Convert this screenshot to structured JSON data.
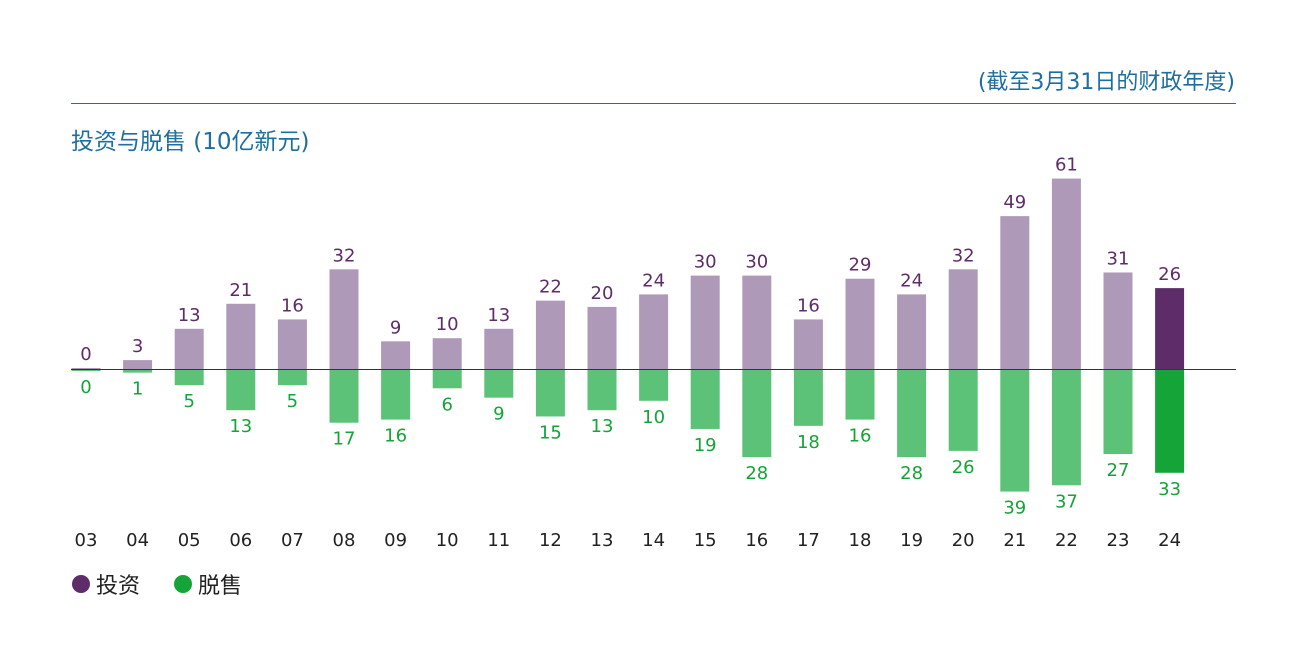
{
  "note": "(截至3月31日的财政年度)",
  "title": "投资与脱售 (10亿新元)",
  "legend": {
    "invest_label": "投资",
    "divest_label": "脱售"
  },
  "colors": {
    "note_blue": "#1d6f9f",
    "invest": "#ae99b8",
    "invest_highlight": "#5e2d69",
    "invest_label": "#5e2d69",
    "divest": "#5cc278",
    "divest_highlight": "#14a437",
    "divest_label": "#14a437",
    "axis": "#333333"
  },
  "chart_data": {
    "type": "bar",
    "title": "投资与脱售 (10亿新元)",
    "subtitle": "(截至3月31日的财政年度)",
    "xlabel": "",
    "ylabel": "",
    "categories": [
      "03",
      "04",
      "05",
      "06",
      "07",
      "08",
      "09",
      "10",
      "11",
      "12",
      "13",
      "14",
      "15",
      "16",
      "17",
      "18",
      "19",
      "20",
      "21",
      "22",
      "23",
      "24"
    ],
    "series": [
      {
        "name": "投资",
        "values": [
          0,
          3,
          13,
          21,
          16,
          32,
          9,
          10,
          13,
          22,
          20,
          24,
          30,
          30,
          16,
          29,
          24,
          32,
          49,
          61,
          31,
          26
        ]
      },
      {
        "name": "脱售",
        "values": [
          0,
          1,
          5,
          13,
          5,
          17,
          16,
          6,
          9,
          15,
          13,
          10,
          19,
          28,
          18,
          16,
          28,
          26,
          39,
          37,
          27,
          33
        ]
      }
    ],
    "highlight_category": "24",
    "legend_position": "bottom-left",
    "grid": false
  }
}
